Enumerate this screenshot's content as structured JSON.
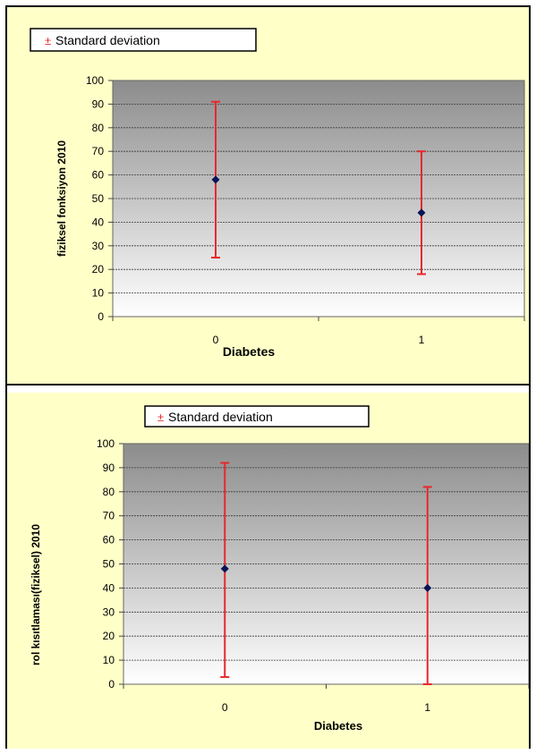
{
  "colors": {
    "panel_bg": "#ffffc8",
    "plot_top": "#8c8c8c",
    "plot_bottom": "#ffffff",
    "error_bar": "#e8282c",
    "marker": "#0c1455",
    "grid": "#3a3a3a"
  },
  "chart_data": [
    {
      "type": "scatter",
      "error_bars": "standard deviation",
      "legend": {
        "symbol": "±",
        "label": "Standard deviation",
        "placement": "top-left"
      },
      "xlabel": "Diabetes",
      "ylabel": "fiziksel fonksiyon 2010",
      "categories": [
        "0",
        "1"
      ],
      "yticks": [
        "0",
        "10",
        "20",
        "30",
        "40",
        "50",
        "60",
        "70",
        "80",
        "90",
        "100"
      ],
      "ylim": [
        0,
        100
      ],
      "grid": true,
      "series": [
        {
          "values": [
            58,
            44
          ],
          "upper": [
            91,
            70
          ],
          "lower": [
            25,
            18
          ]
        }
      ]
    },
    {
      "type": "scatter",
      "error_bars": "standard deviation",
      "legend": {
        "symbol": "±",
        "label": "Standard deviation",
        "placement": "top-center"
      },
      "xlabel": "Diabetes",
      "ylabel": "rol kısıtlaması(fiziksel) 2010",
      "categories": [
        "0",
        "1"
      ],
      "yticks": [
        "0",
        "10",
        "20",
        "30",
        "40",
        "50",
        "60",
        "70",
        "80",
        "90",
        "100"
      ],
      "ylim": [
        0,
        100
      ],
      "grid": true,
      "series": [
        {
          "values": [
            48,
            40
          ],
          "upper": [
            92,
            82
          ],
          "lower": [
            3,
            0
          ]
        }
      ]
    }
  ]
}
